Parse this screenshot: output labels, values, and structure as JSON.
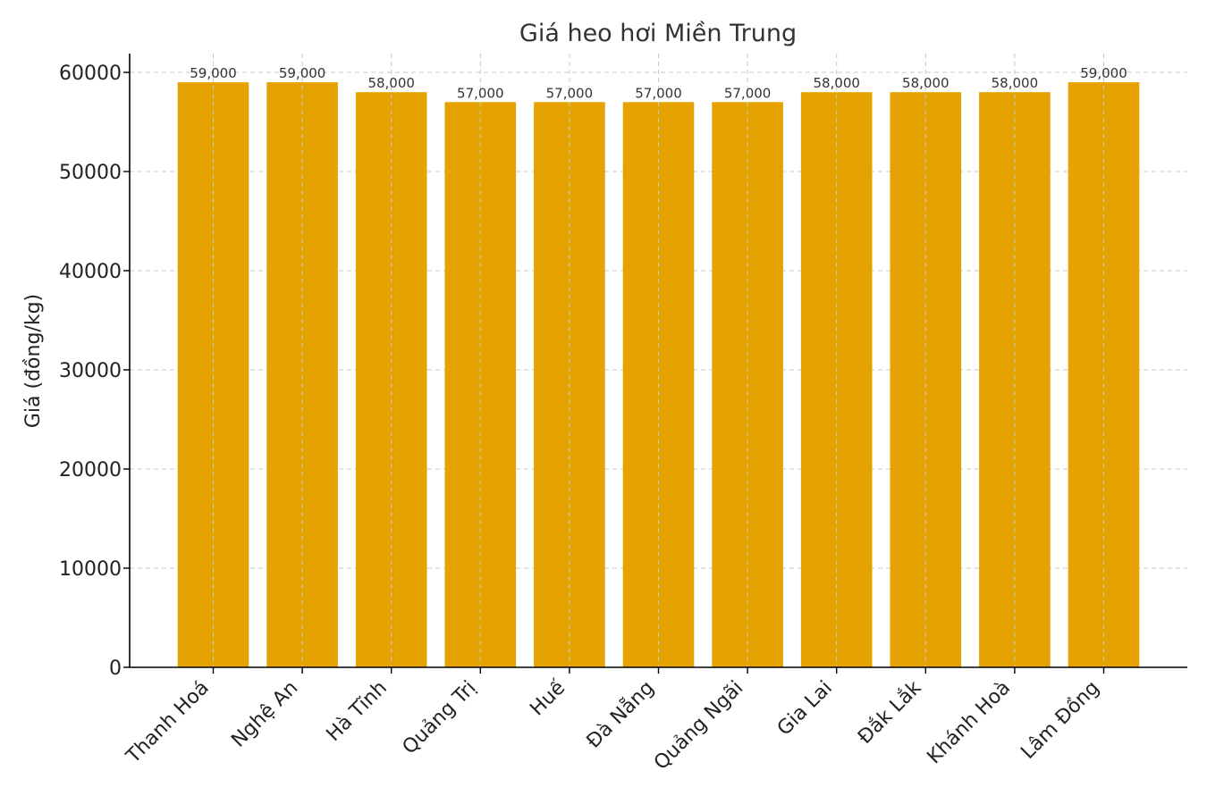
{
  "chart_data": {
    "type": "bar",
    "title": "Giá heo hơi Miền Trung",
    "xlabel": "",
    "ylabel": "Giá (đồng/kg)",
    "categories": [
      "Thanh Hoá",
      "Nghệ An",
      "Hà Tĩnh",
      "Quảng Trị",
      "Huế",
      "Đà Nẵng",
      "Quảng Ngãi",
      "Gia Lai",
      "Đắk Lắk",
      "Khánh Hoà",
      "Lâm Đồng"
    ],
    "values": [
      59000,
      59000,
      58000,
      57000,
      57000,
      57000,
      57000,
      58000,
      58000,
      58000,
      59000
    ],
    "data_labels": [
      "59,000",
      "59,000",
      "58,000",
      "57,000",
      "57,000",
      "57,000",
      "57,000",
      "58,000",
      "58,000",
      "58,000",
      "59,000"
    ],
    "ylim": [
      0,
      62000
    ],
    "yticks": [
      0,
      10000,
      20000,
      30000,
      40000,
      50000,
      60000
    ],
    "ytick_labels": [
      "0",
      "10000",
      "20000",
      "30000",
      "40000",
      "50000",
      "60000"
    ],
    "grid": true,
    "bar_color": "#E5A200"
  }
}
